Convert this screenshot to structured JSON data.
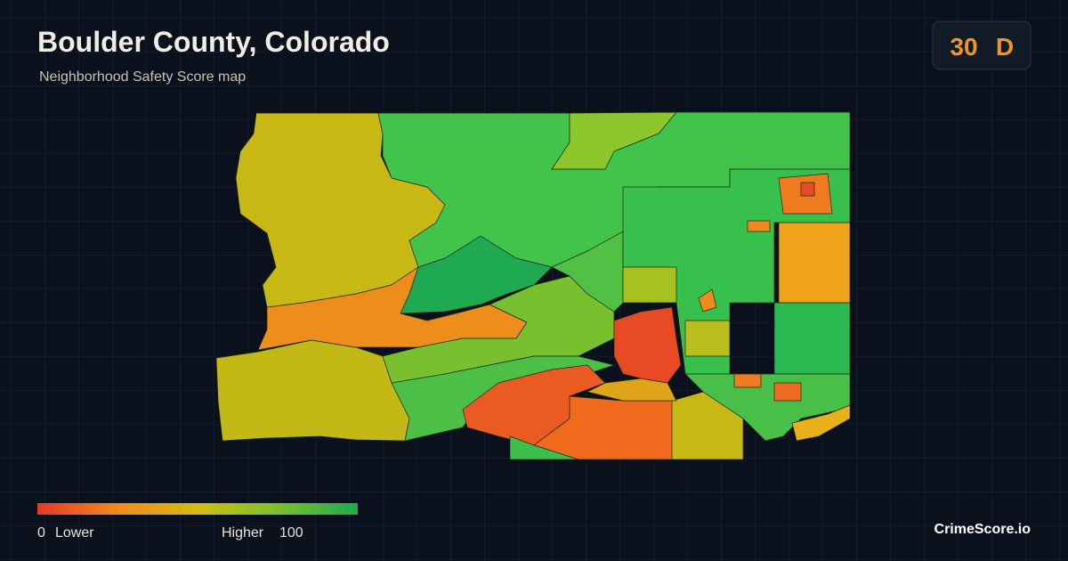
{
  "header": {
    "title": "Boulder County, Colorado",
    "subtitle": "Neighborhood Safety Score map"
  },
  "score": {
    "value": "30",
    "grade": "D"
  },
  "legend": {
    "min": "0",
    "min_label": "Lower",
    "max_label": "Higher",
    "max": "100"
  },
  "brand": "CrimeScore.io"
}
